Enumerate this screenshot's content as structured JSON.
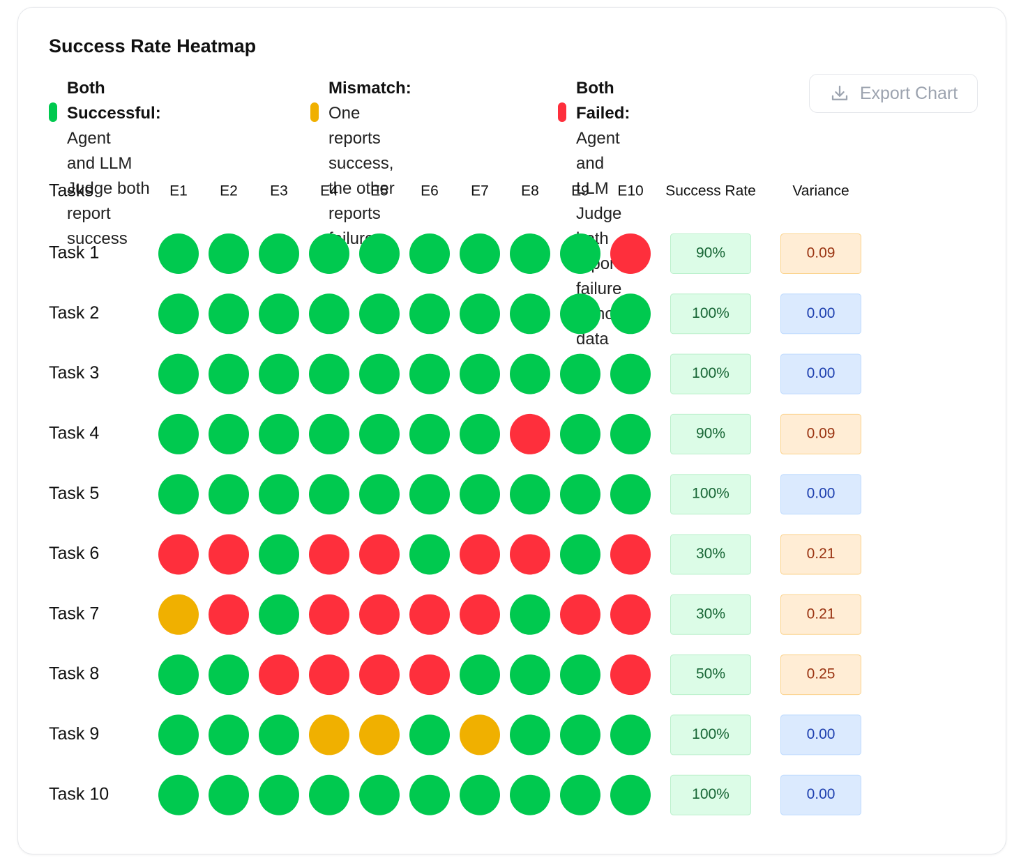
{
  "colors": {
    "success": "#00c94f",
    "mismatch": "#f0b000",
    "failed": "#fe2f3c",
    "rate_bg": "#dcfce7",
    "rate_border": "#bbf0cc",
    "rate_text": "#166534",
    "var_high_bg": "#ffedd5",
    "var_high_border": "#fbd38d",
    "var_high_text": "#9a3412",
    "var_low_bg": "#dbeafe",
    "var_low_border": "#bfdbfe",
    "var_low_text": "#1e40af"
  },
  "chart_data": {
    "type": "heatmap",
    "title": "Success Rate Heatmap",
    "legend": [
      {
        "key": "success",
        "label": "Both Successful:",
        "text_lines": [
          "Agent",
          "and LLM Judge both",
          "report success"
        ]
      },
      {
        "key": "mismatch",
        "label": "Mismatch:",
        "text_lines": [
          "One reports",
          "success, the other",
          "reports failure"
        ]
      },
      {
        "key": "failed",
        "label": "Both Failed:",
        "text_lines": [
          "Agent and",
          "LLM Judge both report",
          "failure or no data"
        ]
      }
    ],
    "row_header": "Tasks",
    "columns": [
      "E1",
      "E2",
      "E3",
      "E4",
      "E5",
      "E6",
      "E7",
      "E8",
      "E9",
      "E10"
    ],
    "rate_header": "Success Rate",
    "variance_header": "Variance",
    "rows": [
      {
        "task": "Task 1",
        "cells": [
          "success",
          "success",
          "success",
          "success",
          "success",
          "success",
          "success",
          "success",
          "success",
          "failed"
        ],
        "success_rate": "90%",
        "variance": "0.09"
      },
      {
        "task": "Task 2",
        "cells": [
          "success",
          "success",
          "success",
          "success",
          "success",
          "success",
          "success",
          "success",
          "success",
          "success"
        ],
        "success_rate": "100%",
        "variance": "0.00"
      },
      {
        "task": "Task 3",
        "cells": [
          "success",
          "success",
          "success",
          "success",
          "success",
          "success",
          "success",
          "success",
          "success",
          "success"
        ],
        "success_rate": "100%",
        "variance": "0.00"
      },
      {
        "task": "Task 4",
        "cells": [
          "success",
          "success",
          "success",
          "success",
          "success",
          "success",
          "success",
          "failed",
          "success",
          "success"
        ],
        "success_rate": "90%",
        "variance": "0.09"
      },
      {
        "task": "Task 5",
        "cells": [
          "success",
          "success",
          "success",
          "success",
          "success",
          "success",
          "success",
          "success",
          "success",
          "success"
        ],
        "success_rate": "100%",
        "variance": "0.00"
      },
      {
        "task": "Task 6",
        "cells": [
          "failed",
          "failed",
          "success",
          "failed",
          "failed",
          "success",
          "failed",
          "failed",
          "success",
          "failed"
        ],
        "success_rate": "30%",
        "variance": "0.21"
      },
      {
        "task": "Task 7",
        "cells": [
          "mismatch",
          "failed",
          "success",
          "failed",
          "failed",
          "failed",
          "failed",
          "success",
          "failed",
          "failed"
        ],
        "success_rate": "30%",
        "variance": "0.21"
      },
      {
        "task": "Task 8",
        "cells": [
          "success",
          "success",
          "failed",
          "failed",
          "failed",
          "failed",
          "success",
          "success",
          "success",
          "failed"
        ],
        "success_rate": "50%",
        "variance": "0.25"
      },
      {
        "task": "Task 9",
        "cells": [
          "success",
          "success",
          "success",
          "mismatch",
          "mismatch",
          "success",
          "mismatch",
          "success",
          "success",
          "success"
        ],
        "success_rate": "100%",
        "variance": "0.00"
      },
      {
        "task": "Task 10",
        "cells": [
          "success",
          "success",
          "success",
          "success",
          "success",
          "success",
          "success",
          "success",
          "success",
          "success"
        ],
        "success_rate": "100%",
        "variance": "0.00"
      }
    ]
  },
  "toolbar": {
    "export_label": "Export Chart",
    "export_icon": "download-icon"
  }
}
